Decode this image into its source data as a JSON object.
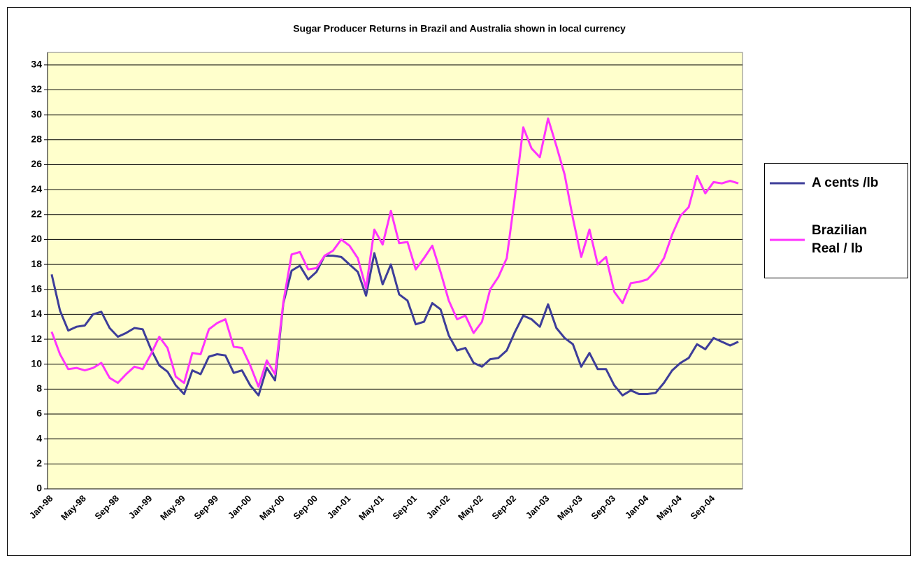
{
  "chart_data": {
    "type": "line",
    "title": "Sugar Producer Returns in Brazil and Australia shown in local currency",
    "categories": [
      "Jan-98",
      null,
      null,
      null,
      "May-98",
      null,
      null,
      null,
      "Sep-98",
      null,
      null,
      null,
      "Jan-99",
      null,
      null,
      null,
      "May-99",
      null,
      null,
      null,
      "Sep-99",
      null,
      null,
      null,
      "Jan-00",
      null,
      null,
      null,
      "May-00",
      null,
      null,
      null,
      "Sep-00",
      null,
      null,
      null,
      "Jan-01",
      null,
      null,
      null,
      "May-01",
      null,
      null,
      null,
      "Sep-01",
      null,
      null,
      null,
      "Jan-02",
      null,
      null,
      null,
      "May-02",
      null,
      null,
      null,
      "Sep-02",
      null,
      null,
      null,
      "Jan-03",
      null,
      null,
      null,
      "May-03",
      null,
      null,
      null,
      "Sep-03",
      null,
      null,
      null,
      "Jan-04",
      null,
      null,
      null,
      "May-04",
      null,
      null,
      null,
      "Sep-04",
      null,
      null,
      null
    ],
    "series": [
      {
        "name": "A cents /lb",
        "color": "#3d3d99",
        "values": [
          17.2,
          14.3,
          12.7,
          13.0,
          13.1,
          14.0,
          14.2,
          12.9,
          12.2,
          12.5,
          12.9,
          12.8,
          11.2,
          9.9,
          9.4,
          8.3,
          7.6,
          9.5,
          9.2,
          10.6,
          10.8,
          10.7,
          9.3,
          9.5,
          8.3,
          7.5,
          9.7,
          8.7,
          14.9,
          17.5,
          17.9,
          16.8,
          17.4,
          18.7,
          18.7,
          18.6,
          18.0,
          17.4,
          15.5,
          18.9,
          16.4,
          18.0,
          15.6,
          15.1,
          13.2,
          13.4,
          14.9,
          14.4,
          12.3,
          11.1,
          11.3,
          10.1,
          9.8,
          10.4,
          10.5,
          11.1,
          12.6,
          13.9,
          13.6,
          13.0,
          14.8,
          12.9,
          12.1,
          11.6,
          9.8,
          10.9,
          9.6,
          9.6,
          8.3,
          7.5,
          7.9,
          7.6,
          7.6,
          7.7,
          8.5,
          9.5,
          10.1,
          10.5,
          11.6,
          11.2,
          12.1,
          11.8,
          11.5,
          11.8
        ]
      },
      {
        "name": "Brazilian Real / lb",
        "color": "#ff33ff",
        "values": [
          12.6,
          10.8,
          9.6,
          9.7,
          9.5,
          9.7,
          10.1,
          8.9,
          8.5,
          9.2,
          9.8,
          9.6,
          10.8,
          12.2,
          11.3,
          9.0,
          8.5,
          10.9,
          10.8,
          12.8,
          13.3,
          13.6,
          11.4,
          11.3,
          9.9,
          8.2,
          10.3,
          9.2,
          15.0,
          18.8,
          19.0,
          17.6,
          17.7,
          18.7,
          19.1,
          20.0,
          19.5,
          18.5,
          16.1,
          20.8,
          19.6,
          22.3,
          19.7,
          19.8,
          17.6,
          18.5,
          19.5,
          17.4,
          15.1,
          13.6,
          13.9,
          12.5,
          13.4,
          16.0,
          17.0,
          18.5,
          23.5,
          29.0,
          27.3,
          26.6,
          29.7,
          27.5,
          25.2,
          21.7,
          18.6,
          20.8,
          18.0,
          18.6,
          15.8,
          14.9,
          16.5,
          16.6,
          16.8,
          17.5,
          18.5,
          20.4,
          21.9,
          22.6,
          25.1,
          23.7,
          24.6,
          24.5,
          24.7,
          24.5
        ]
      }
    ],
    "ylim": [
      0,
      35
    ],
    "yticks": [
      0,
      2,
      4,
      6,
      8,
      10,
      12,
      14,
      16,
      18,
      20,
      22,
      24,
      26,
      28,
      30,
      32,
      34
    ],
    "grid": true,
    "legend": "right"
  }
}
